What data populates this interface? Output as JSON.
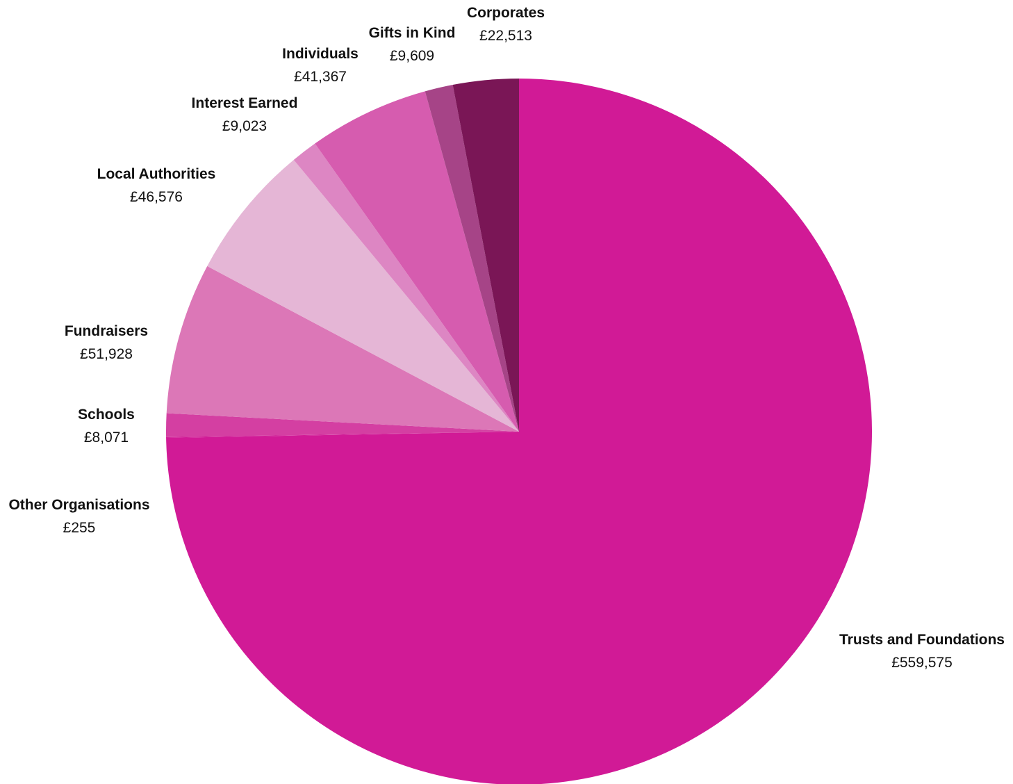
{
  "chart_data": {
    "type": "pie",
    "title": "",
    "currency_prefix": "£",
    "start_angle_deg": 0,
    "direction": "clockwise",
    "slices": [
      {
        "name": "Trusts and Foundations",
        "value": 559575,
        "label_value": "£559,575",
        "color": "#D11A96"
      },
      {
        "name": "Other Organisations",
        "value": 255,
        "label_value": "£255",
        "color": "#D11A96"
      },
      {
        "name": "Schools",
        "value": 8071,
        "label_value": "£8,071",
        "color": "#D43FA2"
      },
      {
        "name": "Fundraisers",
        "value": 51928,
        "label_value": "£51,928",
        "color": "#DC77B7"
      },
      {
        "name": "Local Authorities",
        "value": 46576,
        "label_value": "£46,576",
        "color": "#E5B6D6"
      },
      {
        "name": "Interest Earned",
        "value": 9023,
        "label_value": "£9,023",
        "color": "#DD86C3"
      },
      {
        "name": "Individuals",
        "value": 41367,
        "label_value": "£41,367",
        "color": "#D65CAF"
      },
      {
        "name": "Gifts in Kind",
        "value": 9609,
        "label_value": "£9,609",
        "color": "#A64487"
      },
      {
        "name": "Corporates",
        "value": 22513,
        "label_value": "£22,513",
        "color": "#7A1656"
      }
    ]
  }
}
